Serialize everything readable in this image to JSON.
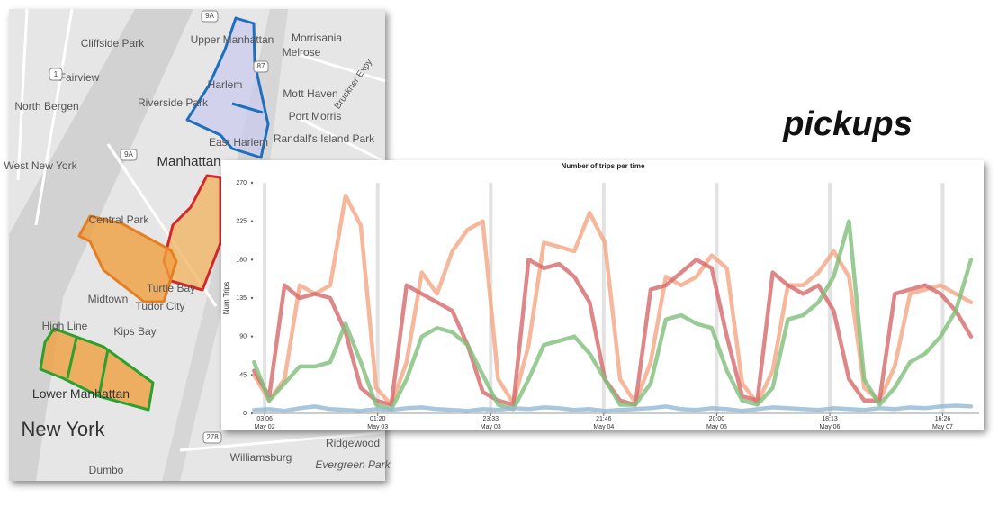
{
  "title": "pickups",
  "map": {
    "labels": [
      "Cliffside Park",
      "Fairview",
      "North Bergen",
      "West New York",
      "Upper Manhattan",
      "Harlem",
      "Morrisania",
      "Melrose",
      "Mott Haven",
      "Port Morris",
      "Randall's Island Park",
      "East Harlem",
      "Riverside Park",
      "Manhattan",
      "Central Park",
      "Midtown",
      "Turtle Bay",
      "Tudor City",
      "Kips Bay",
      "High Line",
      "Lower Manhattan",
      "New York",
      "Ridgewood",
      "Williamsburg",
      "Dumbo",
      "Evergreen Park",
      "Bruckner Expy"
    ],
    "shields": [
      "9A",
      "1",
      "9A",
      "278",
      "87"
    ]
  },
  "chart_data": {
    "type": "line",
    "title": "Number of trips per time",
    "y_label": "Num Trips",
    "x": [
      1,
      4,
      7,
      10,
      13,
      16,
      19,
      22,
      25,
      28,
      31,
      34,
      37,
      40,
      43,
      46,
      49,
      52,
      55,
      58,
      61,
      64,
      67,
      70,
      73,
      76,
      79,
      82,
      85,
      88,
      91,
      94,
      97,
      100,
      103,
      106,
      109,
      112,
      115,
      118,
      121,
      124,
      127,
      130,
      133,
      136,
      139,
      142
    ],
    "xlim": [
      0.6,
      143.6
    ],
    "xticks": [
      {
        "value": 3.1,
        "label": "03:06",
        "date": "May 02"
      },
      {
        "value": 25.33,
        "label": "01:20",
        "date": "May 03"
      },
      {
        "value": 47.55,
        "label": "23:33",
        "date": "May 03"
      },
      {
        "value": 69.77,
        "label": "21:46",
        "date": "May 04"
      },
      {
        "value": 92,
        "label": "20:00",
        "date": "May 05"
      },
      {
        "value": 114.22,
        "label": "18:13",
        "date": "May 06"
      },
      {
        "value": 136.43,
        "label": "16:26",
        "date": "May 07"
      }
    ],
    "ylim": [
      0,
      270
    ],
    "yticks": [
      0,
      45,
      90,
      135,
      180,
      225,
      270
    ],
    "grid": true,
    "series": [
      {
        "color": "#f4a582",
        "values": [
          45,
          15,
          40,
          150,
          140,
          150,
          255,
          220,
          30,
          10,
          60,
          165,
          140,
          190,
          215,
          225,
          40,
          12,
          80,
          200,
          195,
          190,
          235,
          200,
          40,
          12,
          60,
          160,
          150,
          160,
          185,
          170,
          35,
          12,
          50,
          150,
          150,
          165,
          190,
          160,
          30,
          15,
          55,
          140,
          145,
          150,
          140,
          130
        ]
      },
      {
        "color": "#d6696b",
        "values": [
          50,
          20,
          150,
          135,
          140,
          135,
          95,
          30,
          15,
          10,
          150,
          140,
          130,
          120,
          80,
          25,
          15,
          10,
          180,
          170,
          175,
          160,
          130,
          40,
          15,
          10,
          145,
          150,
          165,
          180,
          170,
          90,
          20,
          15,
          165,
          150,
          140,
          150,
          120,
          40,
          15,
          15,
          140,
          145,
          150,
          140,
          120,
          90
        ]
      },
      {
        "color": "#7fbf7b",
        "values": [
          60,
          15,
          35,
          55,
          55,
          60,
          105,
          60,
          10,
          5,
          40,
          90,
          100,
          95,
          80,
          45,
          10,
          5,
          40,
          80,
          85,
          90,
          70,
          40,
          10,
          10,
          35,
          110,
          115,
          105,
          100,
          50,
          15,
          10,
          30,
          110,
          115,
          130,
          160,
          225,
          40,
          10,
          30,
          60,
          70,
          90,
          120,
          180
        ]
      },
      {
        "color": "#92b9d6",
        "values": [
          4,
          5,
          3,
          6,
          8,
          5,
          4,
          3,
          5,
          4,
          6,
          7,
          5,
          4,
          3,
          5,
          4,
          6,
          5,
          7,
          6,
          4,
          5,
          3,
          4,
          5,
          6,
          8,
          5,
          4,
          6,
          5,
          3,
          5,
          7,
          6,
          5,
          4,
          6,
          5,
          4,
          6,
          5,
          7,
          6,
          8,
          9,
          8
        ]
      }
    ]
  }
}
